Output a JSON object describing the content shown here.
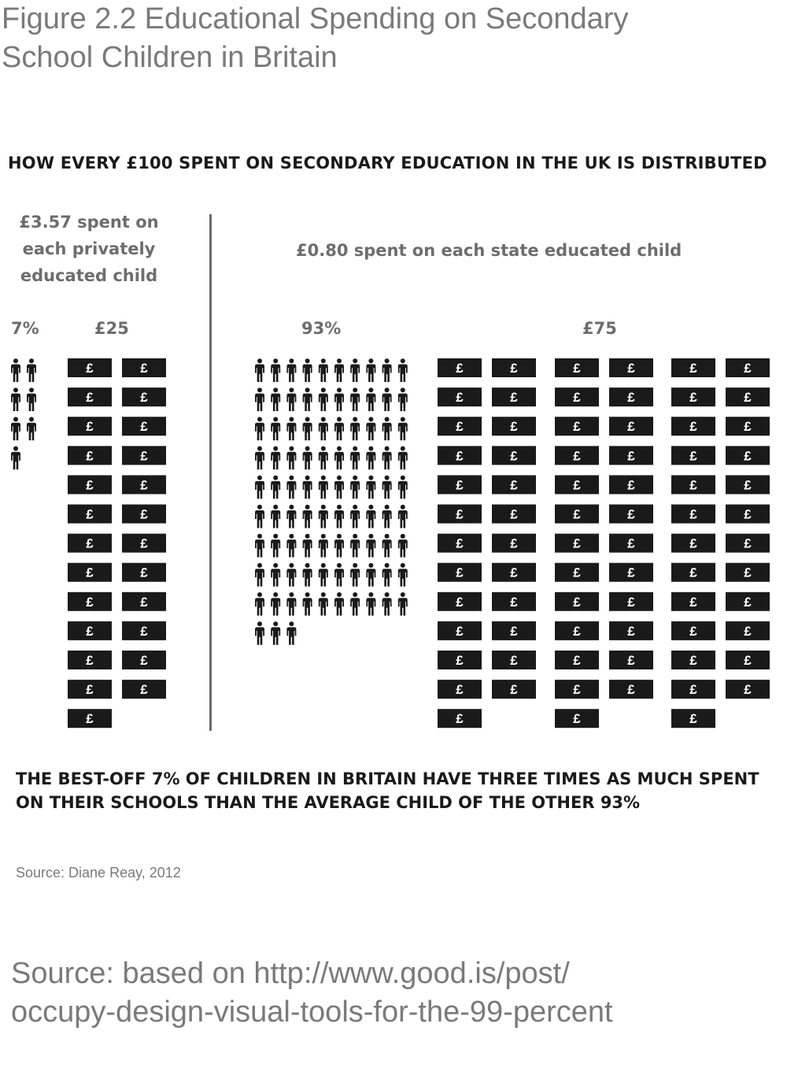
{
  "figure": {
    "title_line1": "Figure 2.2  Educational Spending on Secondary",
    "title_line2": "School Children in Britain",
    "subtitle": "HOW EVERY £100 SPENT ON SECONDARY EDUCATION IN THE UK IS DISTRIBUTED",
    "conclusion_line1": "THE BEST-OFF 7% OF CHILDREN IN BRITAIN HAVE THREE TIMES AS MUCH SPENT",
    "conclusion_line2": "ON THEIR SCHOOLS THAN THE AVERAGE CHILD OF THE OTHER 93%",
    "source_small": "Source: Diane Reay, 2012",
    "source_large_line1": "Source: based on http://www.good.is/post/",
    "source_large_line2": "occupy-design-visual-tools-for-the-99-percent"
  },
  "chart_data": {
    "type": "pictogram",
    "groups": [
      {
        "spend_label_lines": [
          "£3.57 spent on",
          "each privately",
          "educated child"
        ],
        "population_label": "7%",
        "money_label": "£25",
        "people_count": 7,
        "money_units": 25,
        "per_child_spend": 3.57
      },
      {
        "spend_label_lines": [
          "£0.80 spent on each state educated child"
        ],
        "population_label": "93%",
        "money_label": "£75",
        "people_count": 93,
        "money_units": 75,
        "per_child_spend": 0.8
      }
    ],
    "note_symbol": "£",
    "colors": {
      "icon": "#1a1a1a",
      "label_grey": "#6d6d6d",
      "divider": "#6a6a6a"
    }
  }
}
